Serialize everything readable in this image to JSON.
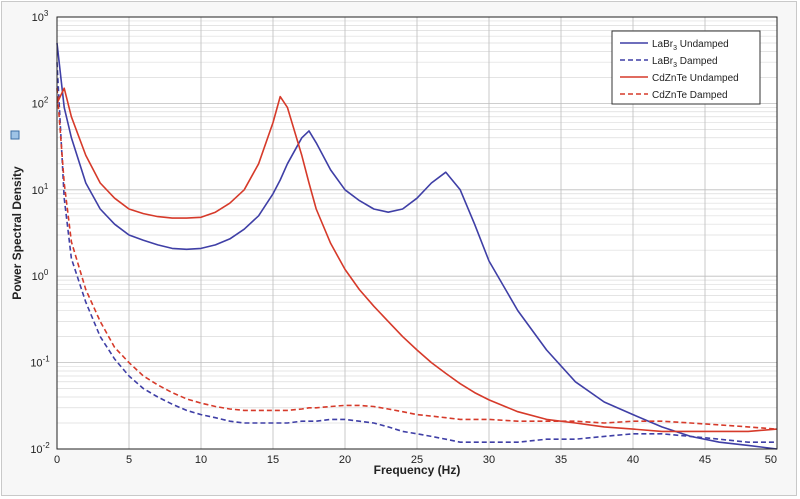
{
  "chart_data": {
    "type": "line",
    "title": "",
    "xlabel": "Frequency (Hz)",
    "ylabel": "Power Spectral Density",
    "xlim": [
      0,
      50
    ],
    "ylim": [
      0.01,
      1000
    ],
    "yscale": "log",
    "grid": true,
    "legend_position": "top-right",
    "x_ticks": [
      "0",
      "5",
      "10",
      "15",
      "20",
      "25",
      "30",
      "35",
      "40",
      "45",
      "50"
    ],
    "y_ticks": [
      {
        "base": "10",
        "exp": "-2"
      },
      {
        "base": "10",
        "exp": "-1"
      },
      {
        "base": "10",
        "exp": "0"
      },
      {
        "base": "10",
        "exp": "1"
      },
      {
        "base": "10",
        "exp": "2"
      },
      {
        "base": "10",
        "exp": "3"
      }
    ],
    "x": [
      0,
      0.5,
      1,
      2,
      3,
      4,
      5,
      6,
      7,
      8,
      9,
      10,
      11,
      12,
      13,
      14,
      15,
      15.5,
      16,
      17,
      17.5,
      18,
      19,
      20,
      21,
      22,
      23,
      24,
      25,
      26,
      27,
      28,
      29,
      30,
      32,
      34,
      36,
      38,
      40,
      42,
      44,
      46,
      48,
      50
    ],
    "series": [
      {
        "name": "LaBr3 Undamped",
        "legend_main": "LaBr",
        "legend_sub": "3",
        "legend_rest": " Undamped",
        "color": "#3f3fa6",
        "dash": "solid",
        "values": [
          500,
          90,
          40,
          12,
          6,
          4,
          3,
          2.6,
          2.3,
          2.1,
          2.05,
          2.1,
          2.3,
          2.7,
          3.5,
          5,
          9,
          13,
          20,
          40,
          48,
          35,
          17,
          10,
          7.5,
          6,
          5.5,
          6,
          8,
          12,
          16,
          10,
          4,
          1.5,
          0.4,
          0.14,
          0.06,
          0.035,
          0.025,
          0.018,
          0.014,
          0.012,
          0.011,
          0.01
        ]
      },
      {
        "name": "LaBr3 Damped",
        "legend_main": "LaBr",
        "legend_sub": "3",
        "legend_rest": " Damped",
        "color": "#3f3fa6",
        "dash": "dashed",
        "values": [
          300,
          8,
          1.6,
          0.5,
          0.2,
          0.11,
          0.07,
          0.05,
          0.04,
          0.033,
          0.028,
          0.025,
          0.023,
          0.021,
          0.02,
          0.02,
          0.02,
          0.02,
          0.02,
          0.021,
          0.021,
          0.021,
          0.022,
          0.022,
          0.021,
          0.02,
          0.018,
          0.016,
          0.015,
          0.014,
          0.013,
          0.012,
          0.012,
          0.012,
          0.012,
          0.013,
          0.013,
          0.014,
          0.015,
          0.015,
          0.014,
          0.013,
          0.012,
          0.012
        ]
      },
      {
        "name": "CdZnTe Undamped",
        "legend_main": "CdZnTe Undamped",
        "legend_sub": "",
        "legend_rest": "",
        "color": "#d63a2a",
        "dash": "solid",
        "values": [
          100,
          150,
          70,
          25,
          12,
          8,
          6,
          5.3,
          4.9,
          4.7,
          4.7,
          4.8,
          5.5,
          7,
          10,
          20,
          60,
          120,
          90,
          25,
          12,
          6,
          2.4,
          1.2,
          0.7,
          0.45,
          0.3,
          0.2,
          0.14,
          0.1,
          0.075,
          0.057,
          0.045,
          0.037,
          0.027,
          0.022,
          0.02,
          0.018,
          0.017,
          0.016,
          0.016,
          0.016,
          0.016,
          0.017
        ]
      },
      {
        "name": "CdZnTe Damped",
        "legend_main": "CdZnTe Damped",
        "legend_sub": "",
        "legend_rest": "",
        "color": "#d63a2a",
        "dash": "dashed",
        "values": [
          150,
          12,
          2.5,
          0.7,
          0.3,
          0.15,
          0.1,
          0.07,
          0.055,
          0.045,
          0.038,
          0.034,
          0.031,
          0.029,
          0.028,
          0.028,
          0.028,
          0.028,
          0.028,
          0.029,
          0.03,
          0.03,
          0.031,
          0.032,
          0.032,
          0.031,
          0.029,
          0.027,
          0.025,
          0.024,
          0.023,
          0.022,
          0.022,
          0.022,
          0.021,
          0.021,
          0.021,
          0.02,
          0.021,
          0.021,
          0.02,
          0.019,
          0.018,
          0.017
        ]
      }
    ]
  }
}
